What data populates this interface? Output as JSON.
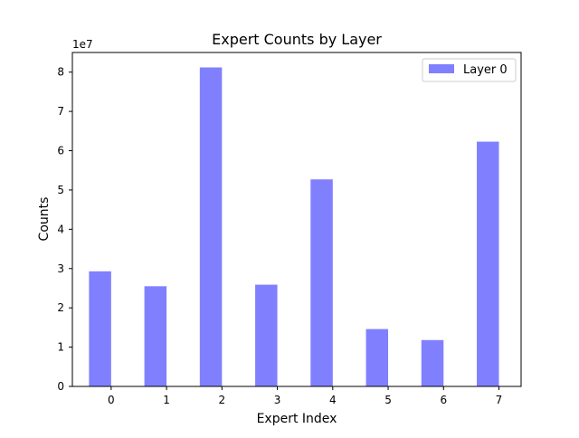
{
  "chart_data": {
    "type": "bar",
    "title": "Expert Counts by Layer",
    "xlabel": "Expert Index",
    "ylabel": "Counts",
    "y_offset_label": "1e7",
    "categories": [
      "0",
      "1",
      "2",
      "3",
      "4",
      "5",
      "6",
      "7"
    ],
    "x": [
      0,
      1,
      2,
      3,
      4,
      5,
      6,
      7
    ],
    "x_ticks": [
      "0",
      "1",
      "2",
      "3",
      "4",
      "5",
      "6",
      "7"
    ],
    "y_ticks": [
      "0",
      "1",
      "2",
      "3",
      "4",
      "5",
      "6",
      "7",
      "8"
    ],
    "y_tick_values": [
      0,
      10000000,
      20000000,
      30000000,
      40000000,
      50000000,
      60000000,
      70000000,
      80000000
    ],
    "xlim": [
      -0.7,
      7.4
    ],
    "ylim": [
      0,
      85000000
    ],
    "series": [
      {
        "name": "Layer 0",
        "color": "#8080ff",
        "values": [
          29300000,
          25500000,
          81200000,
          25900000,
          52700000,
          14600000,
          11800000,
          62300000
        ]
      }
    ],
    "bar_offset": -0.2,
    "bar_width": 0.4,
    "legend": {
      "placement": "top-right",
      "entries": [
        "Layer 0"
      ]
    },
    "grid": false
  }
}
